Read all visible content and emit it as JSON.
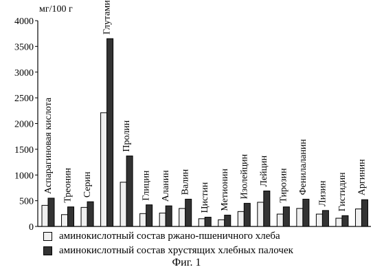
{
  "chart_data": {
    "type": "bar",
    "ylabel": "мг/100 г",
    "ylim": [
      0,
      4000
    ],
    "yticks": [
      0,
      500,
      1000,
      1500,
      2000,
      2500,
      3000,
      3500,
      4000
    ],
    "grid": false,
    "legend_position": "bottom",
    "categories": [
      "Аспарагиновая кислота",
      "Треонин",
      "Серин",
      "Глутаминовая кислота",
      "Пролин",
      "Глицин",
      "Аланин",
      "Валин",
      "Цистин",
      "Метионин",
      "Изолейцин",
      "Лейцин",
      "Тирозин",
      "Фенилаланин",
      "Лизин",
      "Гистидин",
      "Аргинин"
    ],
    "series": [
      {
        "name": "аминокислотный состав ржано-пшеничного хлеба",
        "color": "#f0f0f0",
        "values": [
          410,
          230,
          370,
          2210,
          860,
          250,
          260,
          350,
          150,
          130,
          290,
          470,
          240,
          350,
          240,
          160,
          340
        ]
      },
      {
        "name": "аминокислотный состав хрустящих хлебных палочек",
        "color": "#333333",
        "values": [
          550,
          380,
          480,
          3650,
          1370,
          420,
          400,
          530,
          180,
          220,
          450,
          690,
          380,
          530,
          310,
          210,
          520
        ]
      }
    ]
  },
  "caption": "Фиг. 1"
}
